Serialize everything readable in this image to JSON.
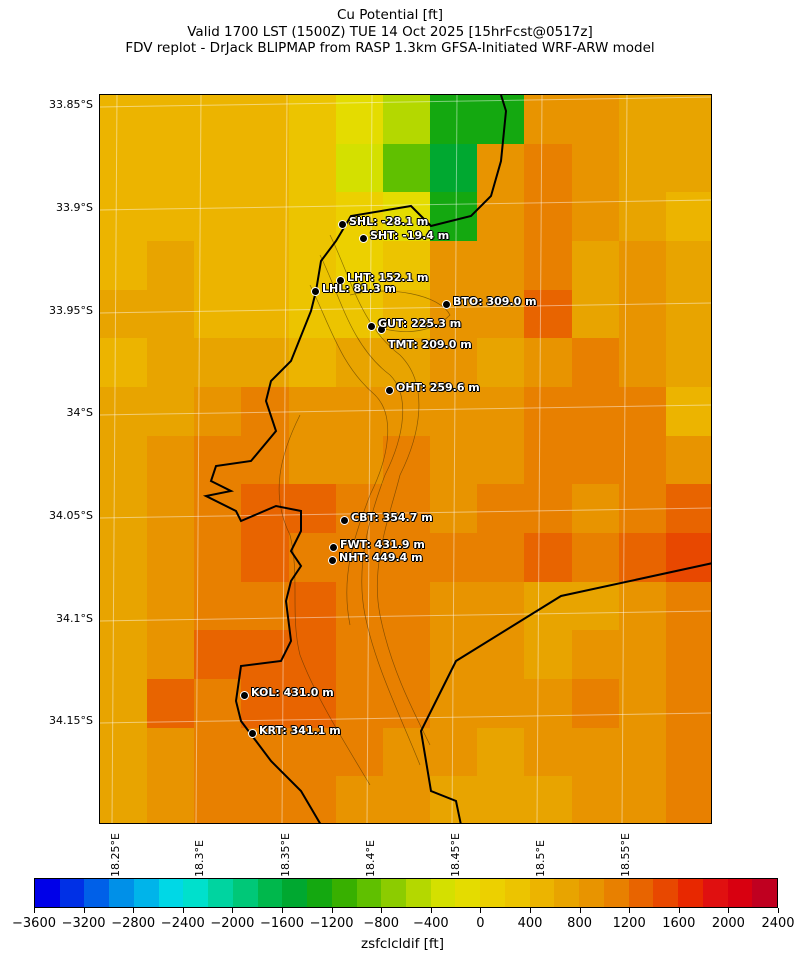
{
  "title": {
    "line1": "Cu Potential [ft]",
    "line2": "Valid 1700 LST (1500Z) TUE 14 Oct 2025 [15hrFcst@0517z]",
    "line3": "FDV replot - DrJack BLIPMAP from RASP 1.3km GFSA-Initiated WRF-ARW model"
  },
  "lat_labels": [
    "33.85°S",
    "33.9°S",
    "33.95°S",
    "34°S",
    "34.05°S",
    "34.1°S",
    "34.15°S"
  ],
  "lon_labels": [
    "18.25°E",
    "18.3°E",
    "18.35°E",
    "18.4°E",
    "18.45°E",
    "18.5°E",
    "18.55°E"
  ],
  "stations": [
    {
      "label": "SHL: -28.1 m"
    },
    {
      "label": "SHT: -19.4 m"
    },
    {
      "label": "LHT: 152.1 m"
    },
    {
      "label": "LHL: 81.3 m"
    },
    {
      "label": "BTO: 309.0 m"
    },
    {
      "label": "GUT: 225.3 m"
    },
    {
      "label": "TMT: 209.0 m"
    },
    {
      "label": "OHT: 259.6 m"
    },
    {
      "label": "CBT: 354.7 m"
    },
    {
      "label": "FWT: 431.9 m"
    },
    {
      "label": "NHT: 449.4 m"
    },
    {
      "label": "KOL: 431.0 m"
    },
    {
      "label": "KRT: 341.1 m"
    }
  ],
  "colorbar": {
    "label": "zsfclcldif [ft]",
    "min": -3600,
    "max": 2400,
    "step": 200,
    "tick_labels": [
      "−3600",
      "−3200",
      "−2800",
      "−2400",
      "−2000",
      "−1600",
      "−1200",
      "−800",
      "−400",
      "0",
      "400",
      "800",
      "1200",
      "1600",
      "2000",
      "2400"
    ],
    "colors": [
      "#0000e8",
      "#0030e6",
      "#0060e8",
      "#0090e8",
      "#00b4ea",
      "#00d8e6",
      "#00e0cc",
      "#00d4a0",
      "#00c878",
      "#00b84c",
      "#00a830",
      "#14a810",
      "#38b000",
      "#60c000",
      "#8ccc00",
      "#b4d800",
      "#d4e000",
      "#e4dc00",
      "#ecd000",
      "#ecc400",
      "#ecb400",
      "#e8a400",
      "#e89400",
      "#e88000",
      "#e86400",
      "#e84800",
      "#e82800",
      "#e01010",
      "#d80010",
      "#c00020"
    ]
  },
  "chart_data": {
    "type": "heatmap",
    "variable": "zsfclcldif [ft]",
    "grid_ft": [
      [
        400,
        400,
        400,
        400,
        200,
        -200,
        -600,
        -1400,
        -1400,
        800,
        800,
        600,
        600
      ],
      [
        400,
        400,
        400,
        400,
        200,
        -400,
        -1000,
        -1600,
        800,
        1000,
        800,
        600,
        600
      ],
      [
        400,
        400,
        400,
        400,
        200,
        0,
        -200,
        -1400,
        800,
        1000,
        800,
        600,
        400
      ],
      [
        400,
        600,
        400,
        400,
        200,
        0,
        200,
        800,
        800,
        1000,
        600,
        800,
        600
      ],
      [
        600,
        600,
        400,
        400,
        200,
        200,
        400,
        800,
        800,
        1200,
        600,
        800,
        600
      ],
      [
        400,
        600,
        600,
        600,
        400,
        600,
        600,
        800,
        600,
        800,
        1000,
        800,
        600
      ],
      [
        600,
        600,
        800,
        1000,
        800,
        800,
        800,
        800,
        800,
        1000,
        1000,
        1000,
        400
      ],
      [
        600,
        800,
        1000,
        1000,
        800,
        800,
        1000,
        800,
        800,
        1000,
        1000,
        1000,
        800
      ],
      [
        600,
        800,
        1000,
        1200,
        1200,
        1000,
        1000,
        800,
        1000,
        1000,
        800,
        1000,
        1200
      ],
      [
        600,
        800,
        1000,
        1200,
        1000,
        1000,
        1000,
        1000,
        1000,
        1200,
        1000,
        1200,
        1400
      ],
      [
        600,
        800,
        1000,
        1000,
        1200,
        1000,
        1000,
        800,
        800,
        600,
        600,
        800,
        1000
      ],
      [
        600,
        800,
        1200,
        1200,
        1200,
        1000,
        1000,
        800,
        800,
        600,
        800,
        800,
        1000
      ],
      [
        600,
        1200,
        1000,
        1200,
        1200,
        1000,
        1000,
        800,
        800,
        800,
        1000,
        800,
        1000
      ],
      [
        600,
        800,
        1000,
        1000,
        1000,
        1000,
        800,
        800,
        600,
        800,
        800,
        800,
        1000
      ],
      [
        600,
        800,
        1000,
        1000,
        1000,
        800,
        800,
        600,
        600,
        600,
        800,
        800,
        1000
      ]
    ]
  }
}
